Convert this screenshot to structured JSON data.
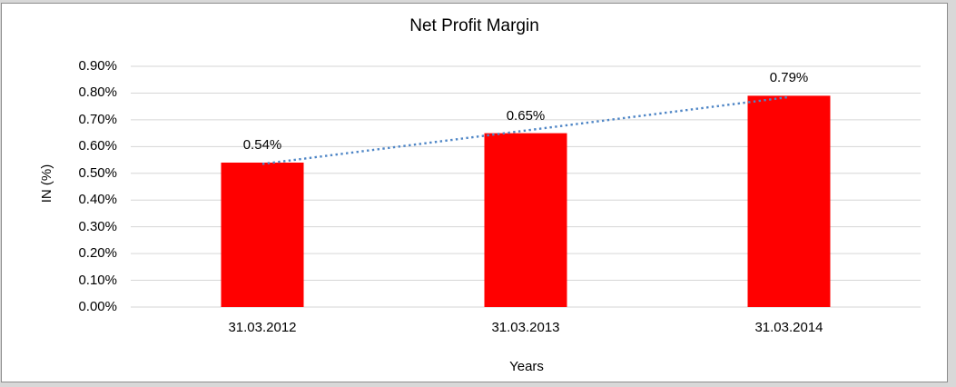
{
  "chart_data": {
    "type": "bar",
    "title": "Net Profit Margin",
    "xlabel": "Years",
    "ylabel": "IN (%)",
    "categories": [
      "31.03.2012",
      "31.03.2013",
      "31.03.2014"
    ],
    "values": [
      0.54,
      0.65,
      0.79
    ],
    "value_labels": [
      "0.54%",
      "0.65%",
      "0.79%"
    ],
    "y_tick_labels": [
      "0.00%",
      "0.10%",
      "0.20%",
      "0.30%",
      "0.40%",
      "0.50%",
      "0.60%",
      "0.70%",
      "0.80%",
      "0.90%"
    ],
    "y_tick_values": [
      0.0,
      0.1,
      0.2,
      0.3,
      0.4,
      0.5,
      0.6,
      0.7,
      0.8,
      0.9
    ],
    "ylim": [
      0.0,
      0.9
    ],
    "grid": "horizontal",
    "legend": "none",
    "bar_color": "#ff0000",
    "gridline_color": "#d6d6d6",
    "trendline": {
      "type": "linear",
      "style": "dotted",
      "color": "#4f86c6"
    },
    "text_color": "#000000",
    "plot_background": "#ffffff"
  }
}
